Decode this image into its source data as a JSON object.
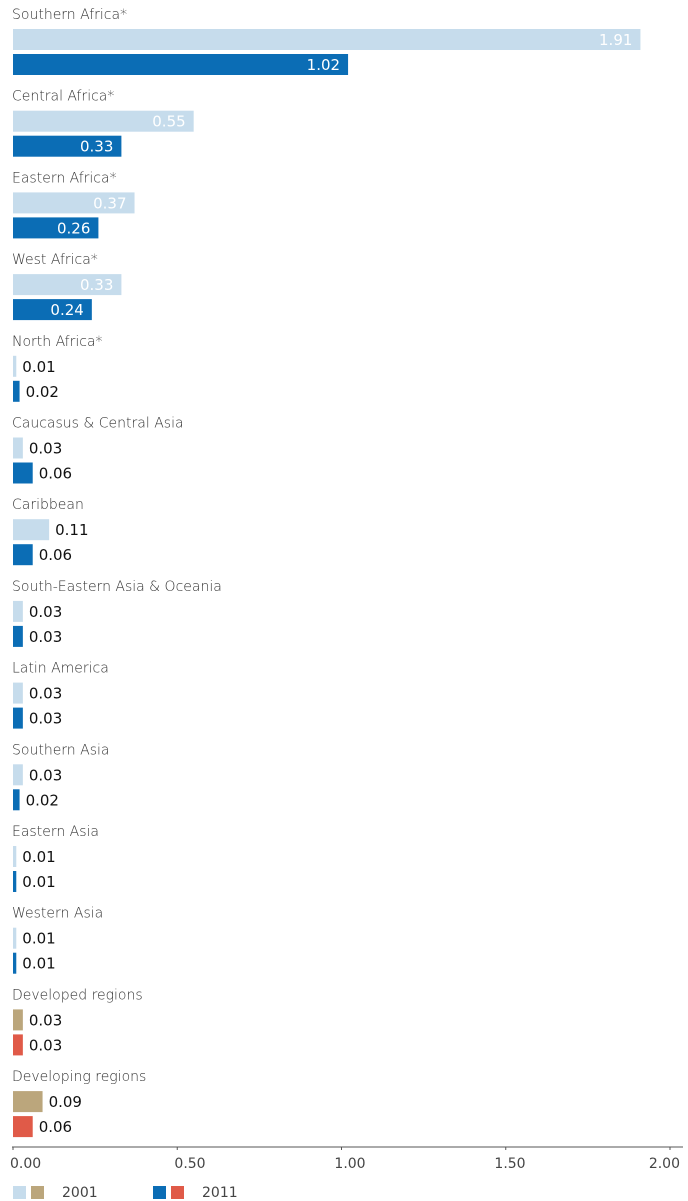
{
  "chart_data": {
    "type": "bar",
    "orientation": "horizontal",
    "categories": [
      "Southern Africa*",
      "Central Africa*",
      "Eastern Africa*",
      "West Africa*",
      "North Africa*",
      "Caucasus & Central Asia",
      "Caribbean",
      "South-Eastern Asia & Oceania",
      "Latin America",
      "Southern Asia",
      "Eastern Asia",
      "Western Asia",
      "Developed regions",
      "Developing regions"
    ],
    "series": [
      {
        "name": "2001",
        "legend_colors": [
          "#c6dcec",
          "#bba67c"
        ],
        "colors": [
          "#c6dcec",
          "#c6dcec",
          "#c6dcec",
          "#c6dcec",
          "#c6dcec",
          "#c6dcec",
          "#c6dcec",
          "#c6dcec",
          "#c6dcec",
          "#c6dcec",
          "#c6dcec",
          "#c6dcec",
          "#bba67c",
          "#bba67c"
        ],
        "values": [
          1.91,
          0.55,
          0.37,
          0.33,
          0.01,
          0.03,
          0.11,
          0.03,
          0.03,
          0.03,
          0.01,
          0.01,
          0.03,
          0.09
        ]
      },
      {
        "name": "2011",
        "legend_colors": [
          "#0b6db5",
          "#e05a48"
        ],
        "colors": [
          "#0b6db5",
          "#0b6db5",
          "#0b6db5",
          "#0b6db5",
          "#0b6db5",
          "#0b6db5",
          "#0b6db5",
          "#0b6db5",
          "#0b6db5",
          "#0b6db5",
          "#0b6db5",
          "#0b6db5",
          "#e05a48",
          "#e05a48"
        ],
        "values": [
          1.02,
          0.33,
          0.26,
          0.24,
          0.02,
          0.06,
          0.06,
          0.03,
          0.03,
          0.02,
          0.01,
          0.01,
          0.03,
          0.06
        ]
      }
    ],
    "xlim": [
      0,
      2
    ],
    "xticks": [
      {
        "value": 0,
        "label": "0.00"
      },
      {
        "value": 0.5,
        "label": "0.50"
      },
      {
        "value": 1,
        "label": "1.00"
      },
      {
        "value": 1.5,
        "label": "1.50"
      },
      {
        "value": 2,
        "label": "2.00"
      }
    ]
  }
}
